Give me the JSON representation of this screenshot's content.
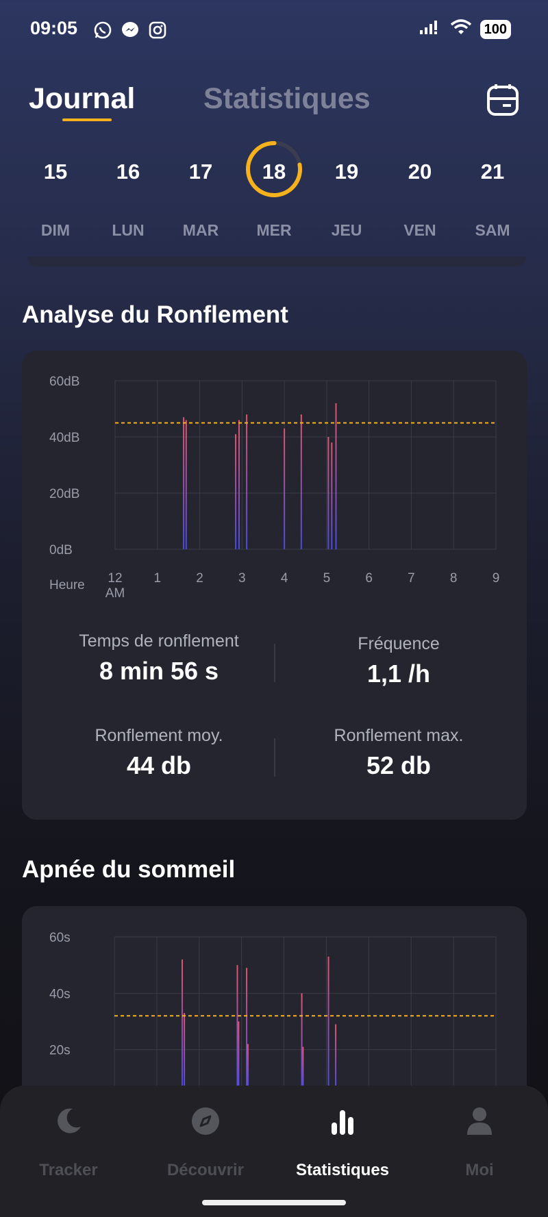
{
  "status_bar": {
    "time": "09:05",
    "battery": "100"
  },
  "header": {
    "tabs": [
      {
        "label": "Journal",
        "active": true
      },
      {
        "label": "Statistiques",
        "active": false
      }
    ]
  },
  "week": [
    {
      "num": "15",
      "name": "DIM"
    },
    {
      "num": "16",
      "name": "LUN"
    },
    {
      "num": "17",
      "name": "MAR"
    },
    {
      "num": "18",
      "name": "MER",
      "selected": true
    },
    {
      "num": "19",
      "name": "JEU"
    },
    {
      "num": "20",
      "name": "VEN"
    },
    {
      "num": "21",
      "name": "SAM"
    }
  ],
  "snoring": {
    "title": "Analyse du Ronflement",
    "stats": {
      "time_label": "Temps de ronflement",
      "time_value": "8 min 56 s",
      "freq_label": "Fréquence",
      "freq_value": "1,1 /h",
      "avg_label": "Ronflement moy.",
      "avg_value": "44 db",
      "max_label": "Ronflement max.",
      "max_value": "52 db"
    }
  },
  "apnea": {
    "title": "Apnée du sommeil"
  },
  "bottom_nav": [
    {
      "label": "Tracker",
      "icon": "moon-icon"
    },
    {
      "label": "Découvrir",
      "icon": "compass-icon"
    },
    {
      "label": "Statistiques",
      "icon": "bar-chart-icon",
      "active": true
    },
    {
      "label": "Moi",
      "icon": "person-icon"
    }
  ],
  "colors": {
    "accent": "#f6b21c",
    "bar_top": "#e0566e",
    "bar_bottom": "#4a4ae0"
  },
  "chart_data": [
    {
      "type": "bar",
      "title": "Analyse du Ronflement",
      "xlabel": "Heure",
      "x_ticks": [
        "12 AM",
        "1",
        "2",
        "3",
        "4",
        "5",
        "6",
        "7",
        "8",
        "9"
      ],
      "y_ticks": [
        "60dB",
        "40dB",
        "20dB",
        "0dB"
      ],
      "ylim": [
        0,
        60
      ],
      "xlim": [
        0,
        9
      ],
      "threshold": 45,
      "series": [
        {
          "x": [
            1.62,
            1.68,
            2.85,
            2.93,
            3.11,
            4.0,
            4.4,
            5.04,
            5.12,
            5.22
          ],
          "values": [
            47,
            46,
            41,
            46,
            48,
            43,
            48,
            40,
            38,
            52
          ]
        }
      ]
    },
    {
      "type": "bar",
      "title": "Apnée du sommeil",
      "y_ticks": [
        "60s",
        "40s",
        "20s"
      ],
      "ylim": [
        0,
        60
      ],
      "xlim": [
        0,
        9
      ],
      "threshold": 32,
      "series": [
        {
          "x": [
            1.6,
            1.65,
            2.9,
            2.93,
            3.12,
            3.15,
            4.42,
            4.45,
            5.05,
            5.22
          ],
          "values": [
            52,
            33,
            50,
            30,
            49,
            22,
            40,
            21,
            53,
            29
          ]
        }
      ]
    }
  ]
}
